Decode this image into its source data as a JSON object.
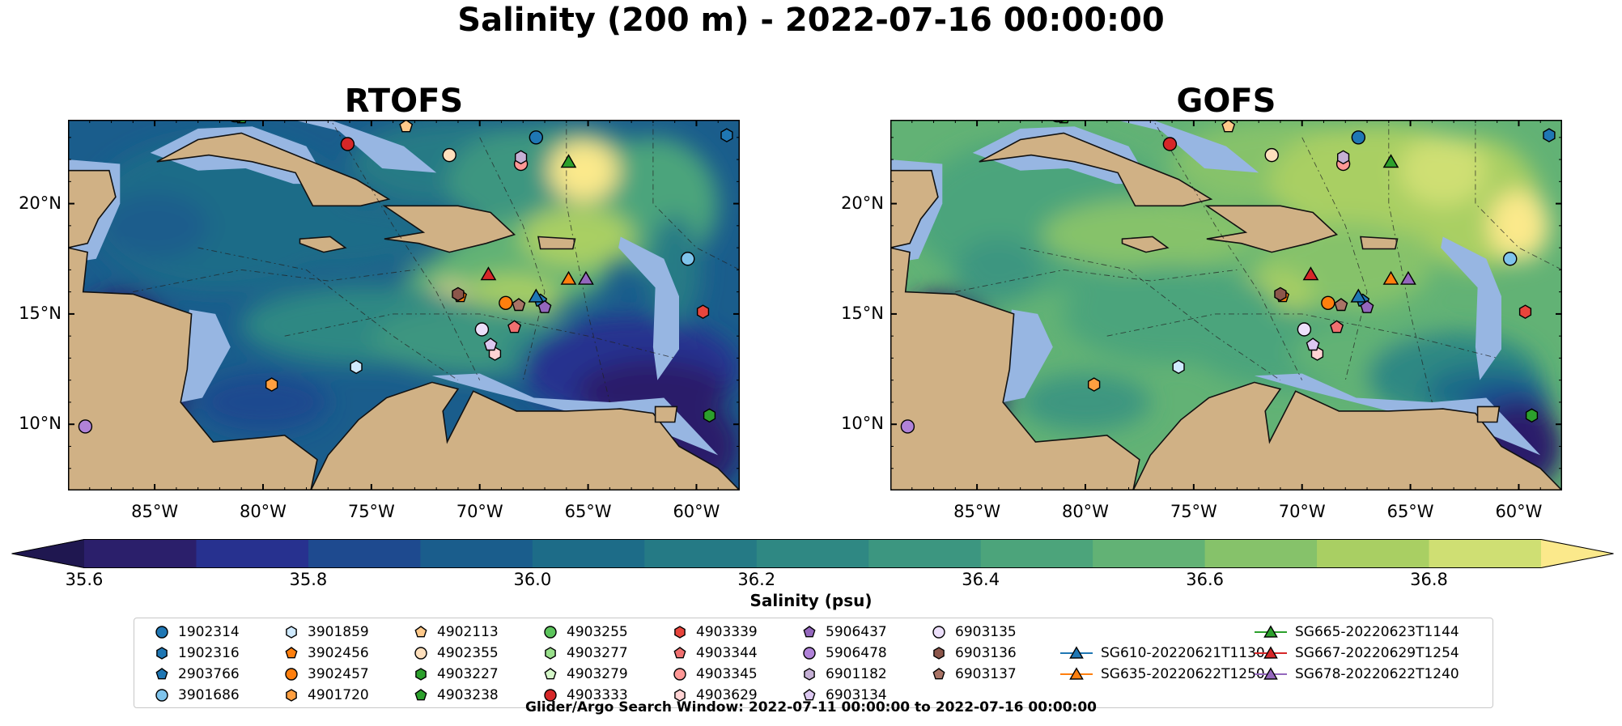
{
  "figure": {
    "title": "Salinity (200 m) - 2022-07-16 00:00:00",
    "panels": [
      "RTOFS",
      "GOFS"
    ],
    "footer": "Glider/Argo Search Window: 2022-07-11 00:00:00 to 2022-07-16 00:00:00"
  },
  "chart_data": {
    "type": "heatmap",
    "title": "Salinity (200 m) - 2022-07-16 00:00:00",
    "x_ticks": [
      "85°W",
      "80°W",
      "75°W",
      "70°W",
      "65°W",
      "60°W"
    ],
    "x_tick_values": [
      -85,
      -80,
      -75,
      -70,
      -65,
      -60
    ],
    "y_ticks": [
      "20°N",
      "15°N",
      "10°N"
    ],
    "y_tick_values": [
      20,
      15,
      10
    ],
    "xlim": [
      -89,
      -58
    ],
    "ylim": [
      7,
      23.8
    ],
    "colorbar": {
      "label": "Salinity (psu)",
      "min": 35.6,
      "max": 36.9,
      "ticks": [
        "35.6",
        "35.8",
        "36.0",
        "36.2",
        "36.4",
        "36.6",
        "36.8"
      ],
      "tick_values": [
        35.6,
        35.8,
        36.0,
        36.2,
        36.4,
        36.6,
        36.8
      ],
      "colors": [
        "#2b1f6b",
        "#27318f",
        "#1e4a8f",
        "#1a5d8c",
        "#1d6c88",
        "#257a85",
        "#2f8883",
        "#3c9680",
        "#4ca47b",
        "#62b275",
        "#86c26a",
        "#a9cf63",
        "#cfdf73"
      ],
      "extend_low": "#1f1750",
      "extend_high": "#fbe98b"
    },
    "series": [
      {
        "name": "1902314",
        "marker": "circle",
        "color": "#1f77b4",
        "lon": -67.4,
        "lat": 23.0
      },
      {
        "name": "1902316",
        "marker": "hexagon",
        "color": "#1f77b4",
        "lon": -58.6,
        "lat": 23.1
      },
      {
        "name": "2903766",
        "marker": "pentagon",
        "color": "#1f77b4",
        "lon": -67.2,
        "lat": 15.6
      },
      {
        "name": "3901686",
        "marker": "circle",
        "color": "#7fc4ec",
        "lon": -60.4,
        "lat": 17.5
      },
      {
        "name": "3901859",
        "marker": "hexagon",
        "color": "#cfeaff",
        "lon": -75.7,
        "lat": 12.6
      },
      {
        "name": "3902456",
        "marker": "pentagon",
        "color": "#ff7f0e",
        "lon": -70.9,
        "lat": 15.8
      },
      {
        "name": "3902457",
        "marker": "circle",
        "color": "#ff7f0e",
        "lon": -68.8,
        "lat": 15.5
      },
      {
        "name": "4901720",
        "marker": "hexagon",
        "color": "#ff9f40",
        "lon": -79.6,
        "lat": 11.8
      },
      {
        "name": "4902113",
        "marker": "pentagon",
        "color": "#ffc98a",
        "lon": -73.4,
        "lat": 23.5
      },
      {
        "name": "4902355",
        "marker": "circle",
        "color": "#ffe0bd",
        "lon": -71.4,
        "lat": 22.2
      },
      {
        "name": "4903227",
        "marker": "hexagon",
        "color": "#2ca02c",
        "lon": -59.4,
        "lat": 10.4
      },
      {
        "name": "4903238",
        "marker": "pentagon",
        "color": "#2ca02c",
        "lon": -81.0,
        "lat": 23.9
      },
      {
        "name": "4903255",
        "marker": "circle",
        "color": "#5cc45c",
        "lon": -81.3,
        "lat": 24.0
      },
      {
        "name": "4903277",
        "marker": "hexagon",
        "color": "#98df8a",
        "lon": -81.1,
        "lat": 24.0
      },
      {
        "name": "4903279",
        "marker": "pentagon",
        "color": "#d5f7c9",
        "lon": -81.2,
        "lat": 24.0
      },
      {
        "name": "4903333",
        "marker": "circle",
        "color": "#d62728",
        "lon": -76.1,
        "lat": 22.7
      },
      {
        "name": "4903339",
        "marker": "hexagon",
        "color": "#e8453c",
        "lon": -59.7,
        "lat": 15.1
      },
      {
        "name": "4903344",
        "marker": "pentagon",
        "color": "#f07070",
        "lon": -68.4,
        "lat": 14.4
      },
      {
        "name": "4903345",
        "marker": "circle",
        "color": "#ff9896",
        "lon": -68.1,
        "lat": 21.8
      },
      {
        "name": "4903629",
        "marker": "hexagon",
        "color": "#ffd3d3",
        "lon": -69.3,
        "lat": 13.2
      },
      {
        "name": "5906437",
        "marker": "pentagon",
        "color": "#9467bd",
        "lon": -67.0,
        "lat": 15.3
      },
      {
        "name": "5906478",
        "marker": "circle",
        "color": "#b082d8",
        "lon": -88.2,
        "lat": 9.9
      },
      {
        "name": "6901182",
        "marker": "hexagon",
        "color": "#c5b0d5",
        "lon": -68.1,
        "lat": 22.1
      },
      {
        "name": "6903134",
        "marker": "pentagon",
        "color": "#dcc8f0",
        "lon": -69.5,
        "lat": 13.6
      },
      {
        "name": "6903135",
        "marker": "circle",
        "color": "#ecdffa",
        "lon": -69.9,
        "lat": 14.3
      },
      {
        "name": "6903136",
        "marker": "hexagon",
        "color": "#8c564b",
        "lon": -71.0,
        "lat": 15.9
      },
      {
        "name": "6903137",
        "marker": "pentagon",
        "color": "#a97466",
        "lon": -68.2,
        "lat": 15.4
      },
      {
        "name": "SG610-20220621T1130",
        "marker": "triangle",
        "color": "#1f77b4",
        "lon": -67.4,
        "lat": 15.8
      },
      {
        "name": "SG635-20220622T1250",
        "marker": "triangle",
        "color": "#ff7f0e",
        "lon": -65.9,
        "lat": 16.6
      },
      {
        "name": "SG665-20220623T1144",
        "marker": "triangle",
        "color": "#2ca02c",
        "lon": -65.9,
        "lat": 21.9
      },
      {
        "name": "SG667-20220629T1254",
        "marker": "triangle",
        "color": "#d62728",
        "lon": -69.6,
        "lat": 16.8
      },
      {
        "name": "SG678-20220622T1240",
        "marker": "triangle",
        "color": "#9467bd",
        "lon": -65.1,
        "lat": 16.6
      }
    ]
  }
}
